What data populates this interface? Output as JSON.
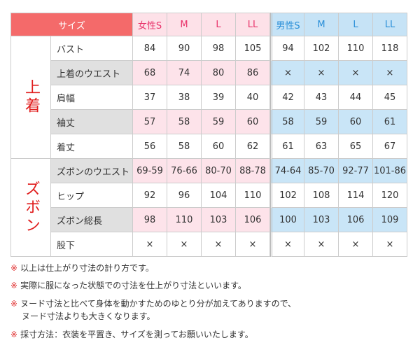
{
  "table": {
    "header_label": "サイズ",
    "header_cells": [
      "女性S",
      "M",
      "L",
      "LL",
      "男性S",
      "M",
      "L",
      "LL"
    ],
    "groups": [
      {
        "label": "上着",
        "rows": [
          {
            "name": "バスト",
            "values": [
              84,
              90,
              98,
              105,
              94,
              102,
              110,
              118
            ]
          },
          {
            "name": "上着のウエスト",
            "values": [
              68,
              74,
              80,
              86,
              "×",
              "×",
              "×",
              "×"
            ]
          },
          {
            "name": "肩幅",
            "values": [
              37,
              38,
              39,
              40,
              42,
              43,
              44,
              45
            ]
          },
          {
            "name": "袖丈",
            "values": [
              57,
              58,
              59,
              60,
              58,
              59,
              60,
              61
            ]
          },
          {
            "name": "着丈",
            "values": [
              56,
              58,
              60,
              62,
              61,
              63,
              65,
              67
            ]
          }
        ]
      },
      {
        "label": "ズボン",
        "rows": [
          {
            "name": "ズボンのウエスト",
            "values": [
              "69-59",
              "76-66",
              "80-70",
              "88-78",
              "74-64",
              "85-70",
              "92-77",
              "101-86"
            ]
          },
          {
            "name": "ヒップ",
            "values": [
              92,
              96,
              104,
              110,
              102,
              108,
              114,
              120
            ]
          },
          {
            "name": "ズボン総長",
            "values": [
              98,
              110,
              103,
              106,
              100,
              103,
              106,
              109
            ]
          },
          {
            "name": "股下",
            "values": [
              "×",
              "×",
              "×",
              "×",
              "×",
              "×",
              "×",
              "×"
            ]
          }
        ]
      }
    ]
  },
  "notes": {
    "mark": "※",
    "items": [
      [
        "以上は仕上がり寸法の計り方です。"
      ],
      [
        "実際に服になった状態での寸法を仕上がり寸法といいます。"
      ],
      [
        "ヌード寸法と比べて身体を動かすためのゆとり分が加えてありますので、",
        "ヌード寸法よりも大きくなります。"
      ],
      [
        "採寸方法：衣装を平置き、サイズを測ってお願いいたします。"
      ]
    ]
  }
}
